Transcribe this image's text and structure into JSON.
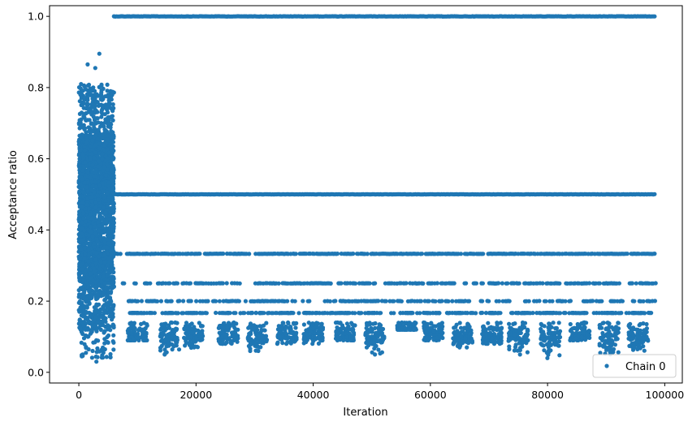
{
  "chart_data": {
    "type": "scatter",
    "title": "",
    "xlabel": "Iteration",
    "ylabel": "Acceptance ratio",
    "xlim": [
      -5000,
      103000
    ],
    "ylim": [
      -0.03,
      1.03
    ],
    "x_ticks": [
      0,
      20000,
      40000,
      60000,
      80000,
      100000
    ],
    "x_tick_labels": [
      "0",
      "20000",
      "40000",
      "60000",
      "80000",
      "100000"
    ],
    "y_ticks": [
      0.0,
      0.2,
      0.4,
      0.6,
      0.8,
      1.0
    ],
    "y_tick_labels": [
      "0.0",
      "0.2",
      "0.4",
      "0.6",
      "0.8",
      "1.0"
    ],
    "grid": false,
    "legend_position": "bottom-right",
    "series": [
      {
        "name": "Chain 0",
        "color": "#1f77b4",
        "x_range": [
          0,
          98500
        ],
        "burn_in_x_range": [
          0,
          6000
        ],
        "burn_in_y_range": [
          0.03,
          0.9
        ],
        "plateau_levels": [
          1.0,
          0.5,
          0.333,
          0.25,
          0.2,
          0.1667
        ],
        "plateau_segments": [
          {
            "y": 1.0,
            "x": [
              6000,
              98500
            ]
          },
          {
            "y": 0.5,
            "x": [
              6000,
              98500
            ]
          },
          {
            "y": 0.333,
            "x": [
              6000,
              98500
            ]
          },
          {
            "y": 0.25,
            "x": [
              7500,
              98500
            ]
          },
          {
            "y": 0.2,
            "x": [
              8500,
              98500
            ]
          },
          {
            "y": 0.1667,
            "x": [
              8500,
              98500
            ]
          }
        ],
        "low_clusters": [
          {
            "x": 10000,
            "min_y": 0.09
          },
          {
            "x": 15500,
            "min_y": 0.05
          },
          {
            "x": 19500,
            "min_y": 0.06
          },
          {
            "x": 25500,
            "min_y": 0.08
          },
          {
            "x": 30500,
            "min_y": 0.06
          },
          {
            "x": 35500,
            "min_y": 0.08
          },
          {
            "x": 40000,
            "min_y": 0.08
          },
          {
            "x": 45500,
            "min_y": 0.09
          },
          {
            "x": 50500,
            "min_y": 0.05
          },
          {
            "x": 56000,
            "min_y": 0.12
          },
          {
            "x": 60500,
            "min_y": 0.09
          },
          {
            "x": 65500,
            "min_y": 0.07
          },
          {
            "x": 70500,
            "min_y": 0.08
          },
          {
            "x": 75000,
            "min_y": 0.05
          },
          {
            "x": 80500,
            "min_y": 0.04
          },
          {
            "x": 85500,
            "min_y": 0.09
          },
          {
            "x": 90500,
            "min_y": 0.05
          },
          {
            "x": 95500,
            "min_y": 0.06
          }
        ],
        "outliers": [
          {
            "x": 3500,
            "y": 0.895
          },
          {
            "x": 1500,
            "y": 0.865
          },
          {
            "x": 2800,
            "y": 0.855
          },
          {
            "x": 3000,
            "y": 0.03
          },
          {
            "x": 500,
            "y": 0.045
          }
        ]
      }
    ]
  }
}
